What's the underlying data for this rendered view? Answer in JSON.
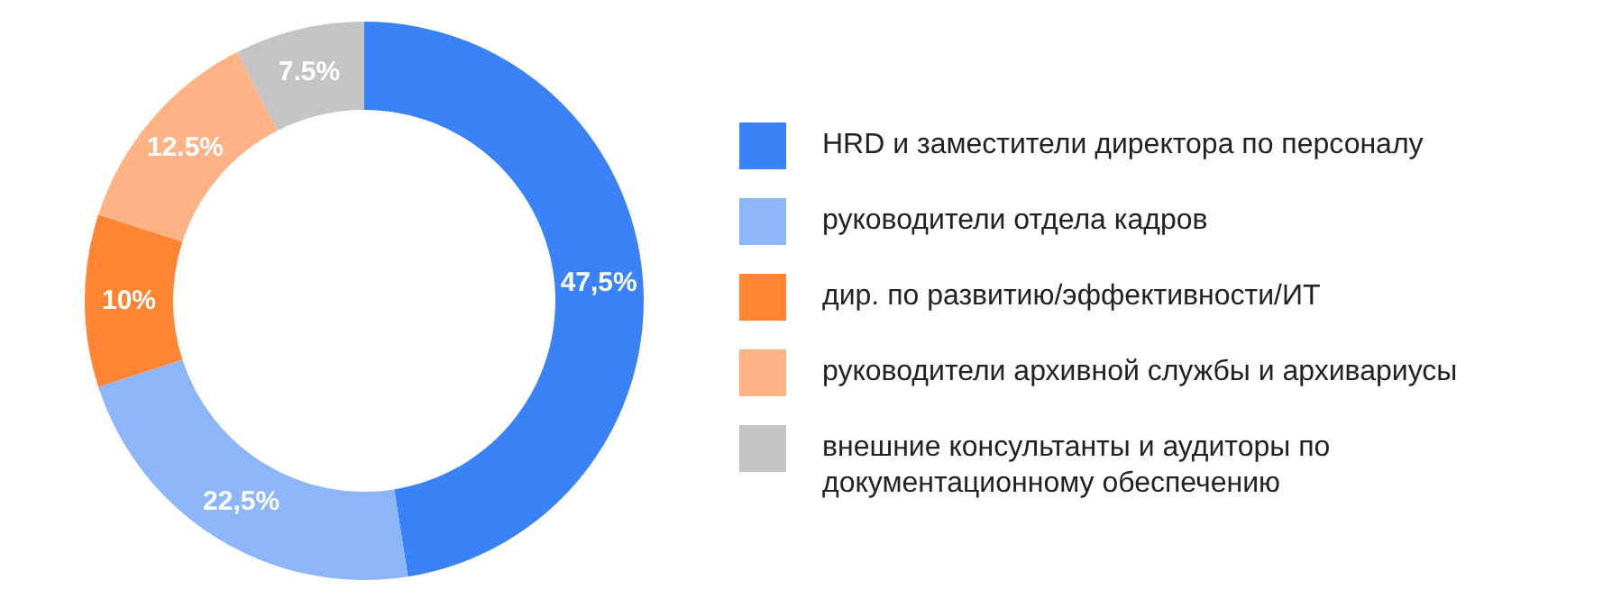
{
  "chart_data": {
    "type": "donut",
    "categories": [
      "HRD и заместители директора по персоналу",
      "руководители отдела кадров",
      "дир. по развитию/эффективности/ИТ",
      "руководители архивной службы и архивариусы",
      "внешние консультанты и аудиторы по документационному обеспечению"
    ],
    "values": [
      47.5,
      22.5,
      10,
      12.5,
      7.5
    ],
    "value_labels": [
      "47,5%",
      "22,5%",
      "10%",
      "12.5%",
      "7.5%"
    ],
    "colors": [
      "#3a82f7",
      "#8cb5fa",
      "#ff8533",
      "#ffb385",
      "#c4c4c4"
    ],
    "legend": "right"
  }
}
